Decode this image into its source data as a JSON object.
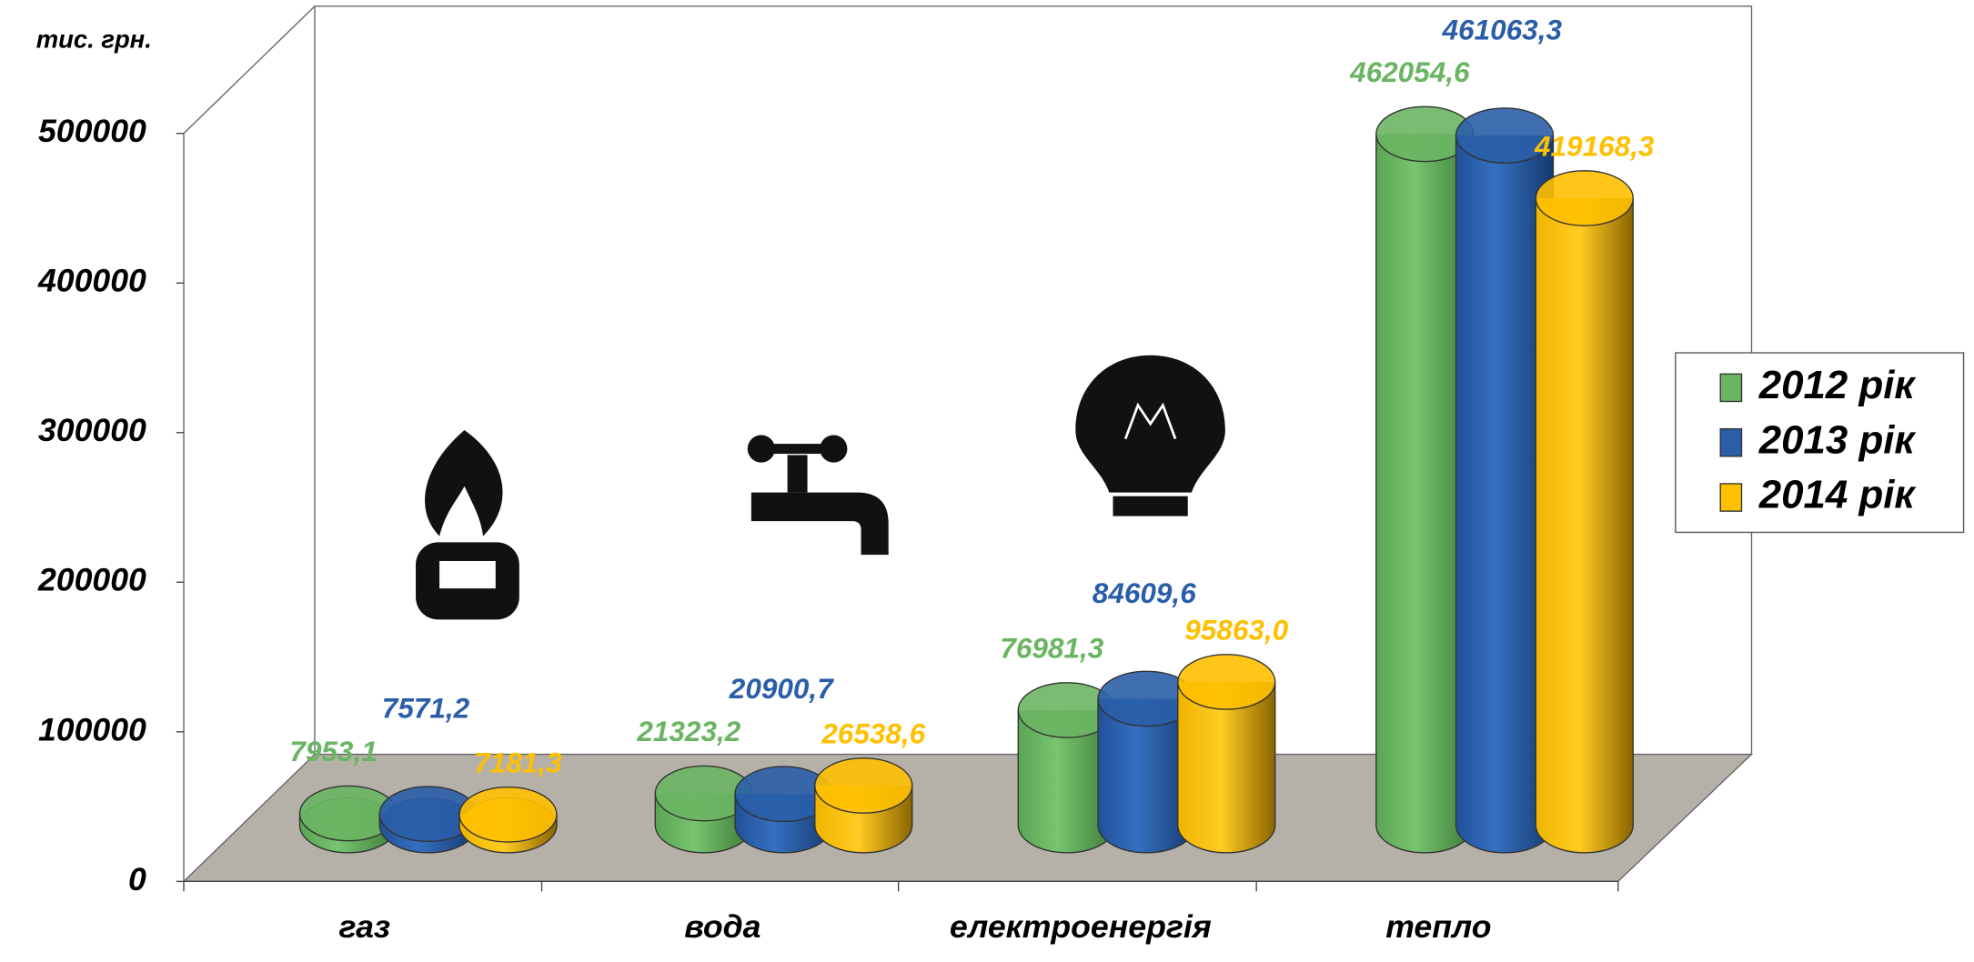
{
  "chart_data": {
    "type": "cylinder_bar",
    "y_axis_label": "тис. грн.",
    "categories": [
      "газ",
      "вода",
      "електроенергія",
      "тепло"
    ],
    "series": [
      {
        "name": "2012 рік",
        "color": "#6ab563",
        "values": [
          7953.1,
          21323.2,
          76981.3,
          462054.6
        ],
        "value_labels": [
          "7953,1",
          "21323,2",
          "76981,3",
          "462054,6"
        ]
      },
      {
        "name": "2013 рік",
        "color": "#2a5ea8",
        "values": [
          7571.2,
          20900.7,
          84609.6,
          461063.3
        ],
        "value_labels": [
          "7571,2",
          "20900,7",
          "84609,6",
          "461063,3"
        ]
      },
      {
        "name": "2014 рік",
        "color": "#ffc000",
        "values": [
          7181.3,
          26538.6,
          95863.0,
          419168.3
        ],
        "value_labels": [
          "7181,3",
          "26538,6",
          "95863,0",
          "419168,3"
        ]
      }
    ],
    "ylim": [
      0,
      500000
    ],
    "yticks": [
      0,
      100000,
      200000,
      300000,
      400000,
      500000
    ],
    "legend": "right"
  }
}
